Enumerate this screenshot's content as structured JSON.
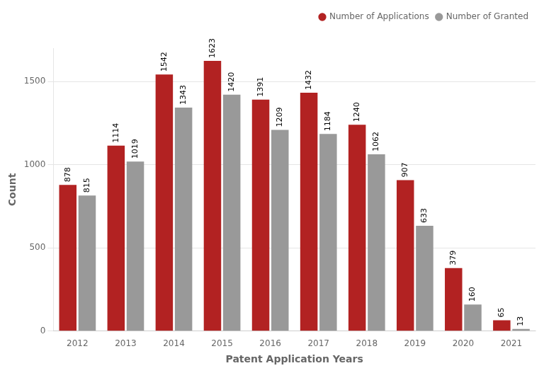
{
  "chart_data": {
    "type": "bar",
    "categories": [
      "2012",
      "2013",
      "2014",
      "2015",
      "2016",
      "2017",
      "2018",
      "2019",
      "2020",
      "2021"
    ],
    "series": [
      {
        "name": "Number of Applications",
        "color": "#b22222",
        "values": [
          878,
          1114,
          1542,
          1623,
          1391,
          1432,
          1240,
          907,
          379,
          65
        ]
      },
      {
        "name": "Number of Granted",
        "color": "#999999",
        "values": [
          815,
          1019,
          1343,
          1420,
          1209,
          1184,
          1062,
          633,
          160,
          13
        ]
      }
    ],
    "xlabel": "Patent Application Years",
    "ylabel": "Count",
    "ylim": [
      0,
      1700
    ],
    "yticks": [
      0,
      500,
      1000,
      1500
    ],
    "grid": true,
    "legend": "upper right",
    "data_labels": true
  }
}
